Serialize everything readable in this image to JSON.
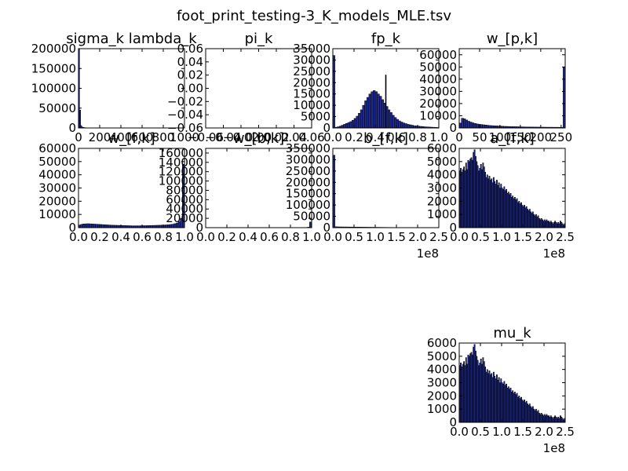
{
  "figure": {
    "suptitle": "foot_print_testing-3_K_models_MLE.tsv"
  },
  "chart_data": [
    {
      "type": "bar",
      "title": "sigma_k lambda_k",
      "xlim": [
        0,
        1100
      ],
      "ylim": [
        0,
        200000
      ],
      "xticks": [],
      "xticklabels": [
        "0",
        "200",
        "400",
        "600",
        "800",
        "1000"
      ],
      "yticks": [
        0,
        50000,
        100000,
        150000,
        200000
      ],
      "yticklabels": [
        "0",
        "50000",
        "100000",
        "150000",
        "200000"
      ],
      "bins": {
        "start": 0,
        "width": 11,
        "values": [
          200000,
          45000,
          6000,
          2500,
          1500,
          900,
          600,
          400,
          300,
          200,
          150,
          120,
          100,
          80,
          70,
          60,
          50,
          40,
          30,
          25
        ]
      },
      "x_offset": ""
    },
    {
      "type": "bar",
      "title": "pi_k",
      "xlim": [
        -0.06,
        0.06
      ],
      "ylim": [
        -0.06,
        0.06
      ],
      "xticks": [
        -0.06,
        -0.04,
        -0.02,
        0.0,
        0.02,
        0.04,
        0.06
      ],
      "xticklabels": [
        "−0.06",
        "−0.04",
        "−0.02",
        "0.00",
        "0.02",
        "0.04",
        "0.06"
      ],
      "yticks": [
        -0.06,
        -0.04,
        -0.02,
        0.0,
        0.02,
        0.04,
        0.06
      ],
      "yticklabels": [
        "−0.06",
        "−0.04",
        "−0.02",
        "0.00",
        "0.02",
        "0.04",
        "0.06"
      ],
      "bins": {
        "start": 0,
        "width": 0,
        "values": []
      },
      "x_offset": ""
    },
    {
      "type": "bar",
      "title": "fp_k",
      "xlim": [
        0,
        1
      ],
      "ylim": [
        0,
        35000
      ],
      "xticks": [
        0,
        0.2,
        0.4,
        0.6,
        0.8,
        1.0
      ],
      "xticklabels": [
        "0.0",
        "0.2",
        "0.4",
        "0.6",
        "0.8",
        "1.0"
      ],
      "yticks": [
        0,
        5000,
        10000,
        15000,
        20000,
        25000,
        30000,
        35000
      ],
      "yticklabels": [
        "0",
        "5000",
        "10000",
        "15000",
        "20000",
        "25000",
        "30000",
        "35000"
      ],
      "bins": {
        "start": 0,
        "width": 0.02,
        "values": [
          32000,
          300,
          500,
          800,
          1200,
          1600,
          2000,
          2400,
          2800,
          3400,
          4200,
          5200,
          6500,
          8000,
          10000,
          12000,
          13500,
          15000,
          16000,
          16500,
          16000,
          15000,
          14000,
          12500,
          11000,
          9500,
          8000,
          6800,
          5600,
          4600,
          3800,
          3100,
          2600,
          2200,
          1900,
          1600,
          1400,
          1200,
          1000,
          900,
          800,
          700,
          600,
          500,
          450,
          400,
          350,
          300,
          250,
          200
        ]
      },
      "spike": {
        "x": 0.5,
        "value": 23500
      },
      "x_offset": ""
    },
    {
      "type": "bar",
      "title": "w_[p,k]",
      "xlim": [
        0,
        260
      ],
      "ylim": [
        0,
        65000
      ],
      "xticks": [
        0,
        50,
        100,
        150,
        200,
        250
      ],
      "xticklabels": [
        "0",
        "50",
        "100",
        "150",
        "200",
        "250"
      ],
      "yticks": [
        0,
        10000,
        20000,
        30000,
        40000,
        50000,
        60000
      ],
      "yticklabels": [
        "0",
        "10000",
        "20000",
        "30000",
        "40000",
        "50000",
        "60000"
      ],
      "bins": {
        "start": 0,
        "width": 5.2,
        "values": [
          4000,
          8000,
          7500,
          6500,
          5500,
          4800,
          4200,
          3700,
          3300,
          3000,
          2800,
          2600,
          2400,
          2200,
          2000,
          1900,
          1800,
          1700,
          1600,
          1500,
          1400,
          1300,
          1250,
          1200,
          1150,
          1100,
          1050,
          1000,
          950,
          900,
          850,
          800,
          780,
          760,
          740,
          720,
          700,
          680,
          660,
          640,
          620,
          600,
          590,
          580,
          570,
          560,
          550,
          540,
          530,
          50000
        ]
      },
      "x_offset": ""
    },
    {
      "type": "bar",
      "title": "w_[f,k]",
      "xlim": [
        0,
        1
      ],
      "ylim": [
        0,
        60000
      ],
      "xticks": [
        0,
        0.2,
        0.4,
        0.6,
        0.8,
        1.0
      ],
      "xticklabels": [
        "0.0",
        "0.2",
        "0.4",
        "0.6",
        "0.8",
        "1.0"
      ],
      "yticks": [
        0,
        10000,
        20000,
        30000,
        40000,
        50000,
        60000
      ],
      "yticklabels": [
        "0",
        "10000",
        "20000",
        "30000",
        "40000",
        "50000",
        "60000"
      ],
      "bins": {
        "start": 0,
        "width": 0.02,
        "values": [
          2000,
          2500,
          2800,
          2900,
          3000,
          2900,
          2800,
          2700,
          2600,
          2500,
          2400,
          2300,
          2200,
          2100,
          2000,
          1900,
          1850,
          1800,
          1750,
          1700,
          1650,
          1600,
          1550,
          1500,
          1450,
          1400,
          1400,
          1400,
          1400,
          1450,
          1500,
          1500,
          1550,
          1600,
          1650,
          1700,
          1750,
          1800,
          1850,
          1900,
          2000,
          2100,
          2200,
          2400,
          2600,
          3000,
          3500,
          4500,
          7000,
          48000
        ]
      },
      "x_offset": ""
    },
    {
      "type": "bar",
      "title": "w_[b,k]",
      "xlim": [
        0,
        1
      ],
      "ylim": [
        0,
        170000
      ],
      "xticks": [
        0,
        0.2,
        0.4,
        0.6,
        0.8,
        1.0
      ],
      "xticklabels": [
        "0.0",
        "0.2",
        "0.4",
        "0.6",
        "0.8",
        "1.0"
      ],
      "yticks": [
        0,
        20000,
        40000,
        60000,
        80000,
        100000,
        120000,
        140000,
        160000
      ],
      "yticklabels": [
        "0",
        "20000",
        "40000",
        "60000",
        "80000",
        "100000",
        "120000",
        "140000",
        "160000"
      ],
      "bins": {
        "start": 0,
        "width": 0.02,
        "values": [
          300,
          250,
          220,
          200,
          190,
          180,
          170,
          160,
          150,
          150,
          150,
          150,
          150,
          150,
          150,
          150,
          150,
          150,
          150,
          150,
          150,
          150,
          150,
          150,
          150,
          150,
          150,
          150,
          150,
          150,
          150,
          150,
          150,
          150,
          150,
          150,
          150,
          150,
          150,
          150,
          160,
          170,
          180,
          200,
          220,
          250,
          300,
          400,
          1000,
          12000
        ]
      },
      "x_offset": ""
    },
    {
      "type": "bar",
      "title": "b_[f,k]",
      "xlim": [
        0,
        250000000
      ],
      "ylim": [
        0,
        350000
      ],
      "xticks": [
        0,
        50000000,
        100000000,
        150000000,
        200000000,
        250000000
      ],
      "xticklabels": [
        "0.0",
        "0.5",
        "1.0",
        "1.5",
        "2.0",
        "2.5"
      ],
      "yticks": [
        0,
        50000,
        100000,
        150000,
        200000,
        250000,
        300000,
        350000
      ],
      "yticklabels": [
        "0",
        "50000",
        "100000",
        "150000",
        "200000",
        "250000",
        "300000",
        "350000"
      ],
      "bins": {
        "start": 0,
        "width": 5000000,
        "values": [
          320000,
          4000,
          3500,
          3300,
          3200,
          3100,
          3000,
          2900,
          2800,
          2700,
          2600,
          2500,
          2400,
          2300,
          2200,
          2100,
          2000,
          1900,
          1800,
          1700,
          1600,
          1500,
          1400,
          1300,
          1200,
          1100,
          1000,
          950,
          900,
          850,
          800,
          750,
          700,
          650,
          600,
          550,
          500,
          450,
          400,
          350,
          300,
          280,
          260,
          240,
          220,
          200,
          180,
          160,
          140,
          120
        ]
      },
      "x_offset": "1e8"
    },
    {
      "type": "bar",
      "title": "a_[f,k]",
      "xlim": [
        0,
        250000000
      ],
      "ylim": [
        0,
        6000
      ],
      "xticks": [
        0,
        50000000,
        100000000,
        150000000,
        200000000,
        250000000
      ],
      "xticklabels": [
        "0.0",
        "0.5",
        "1.0",
        "1.5",
        "2.0",
        "2.5"
      ],
      "yticks": [
        0,
        1000,
        2000,
        3000,
        4000,
        5000,
        6000
      ],
      "yticklabels": [
        "0",
        "1000",
        "2000",
        "3000",
        "4000",
        "5000",
        "6000"
      ],
      "bins": {
        "start": 0,
        "width": 2500000,
        "values": [
          4300,
          4500,
          4200,
          4400,
          4600,
          4300,
          4900,
          4400,
          5100,
          5000,
          5200,
          5300,
          5100,
          5700,
          5900,
          5400,
          5000,
          4700,
          4300,
          4500,
          4800,
          4400,
          4900,
          4600,
          4200,
          3800,
          4000,
          3700,
          3900,
          3600,
          3700,
          3400,
          3800,
          3500,
          3300,
          3600,
          3200,
          3400,
          3000,
          3300,
          3000,
          2900,
          3100,
          2800,
          2900,
          2600,
          2700,
          2500,
          2600,
          2300,
          2400,
          2200,
          2300,
          2100,
          2200,
          1900,
          2000,
          1800,
          1900,
          1700,
          1600,
          1700,
          1500,
          1600,
          1400,
          1300,
          1400,
          1200,
          1100,
          1200,
          1000,
          900,
          1000,
          800,
          900,
          700,
          600,
          700,
          600,
          500,
          600,
          500,
          600,
          500,
          500,
          400,
          500,
          400,
          300,
          400,
          500,
          400,
          300,
          400,
          300,
          500,
          400,
          300,
          200,
          300
        ]
      },
      "x_offset": "1e8"
    },
    {
      "type": "bar",
      "title": "mu_k",
      "xlim": [
        0,
        250000000
      ],
      "ylim": [
        0,
        6000
      ],
      "xticks": [
        0,
        50000000,
        100000000,
        150000000,
        200000000,
        250000000
      ],
      "xticklabels": [
        "0.0",
        "0.5",
        "1.0",
        "1.5",
        "2.0",
        "2.5"
      ],
      "yticks": [
        0,
        1000,
        2000,
        3000,
        4000,
        5000,
        6000
      ],
      "yticklabels": [
        "0",
        "1000",
        "2000",
        "3000",
        "4000",
        "5000",
        "6000"
      ],
      "bins": {
        "start": 0,
        "width": 2500000,
        "values": [
          4300,
          4500,
          4200,
          4400,
          4600,
          4300,
          4900,
          4400,
          5100,
          5000,
          5200,
          5300,
          5100,
          5700,
          5900,
          5400,
          5000,
          4700,
          4300,
          4500,
          4800,
          4400,
          4900,
          4600,
          4200,
          3800,
          4000,
          3700,
          3900,
          3600,
          3700,
          3400,
          3800,
          3500,
          3300,
          3600,
          3200,
          3400,
          3000,
          3300,
          3000,
          2900,
          3100,
          2800,
          2900,
          2600,
          2700,
          2500,
          2600,
          2300,
          2400,
          2200,
          2300,
          2100,
          2200,
          1900,
          2000,
          1800,
          1900,
          1700,
          1600,
          1700,
          1500,
          1600,
          1400,
          1300,
          1400,
          1200,
          1100,
          1200,
          1000,
          900,
          1000,
          800,
          900,
          700,
          600,
          700,
          600,
          500,
          600,
          500,
          600,
          500,
          500,
          400,
          500,
          400,
          300,
          400,
          500,
          400,
          300,
          400,
          300,
          500,
          400,
          300,
          200,
          300
        ]
      },
      "x_offset": "1e8"
    }
  ]
}
